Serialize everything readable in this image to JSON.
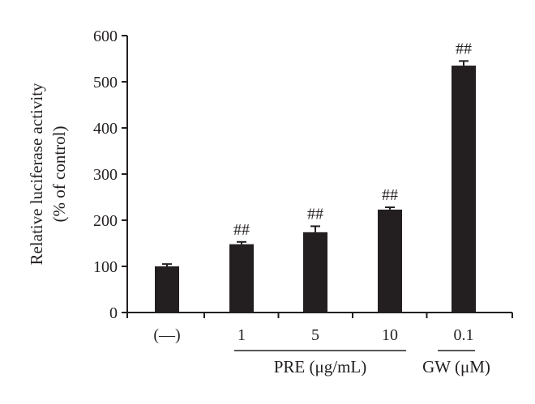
{
  "chart_data": {
    "type": "bar",
    "ylabel_line1": "Relative luciferase activity",
    "ylabel_line2": "(% of control)",
    "ylim": [
      0,
      600
    ],
    "yticks": [
      "0",
      "100",
      "200",
      "300",
      "400",
      "500",
      "600"
    ],
    "ytick_values": [
      0,
      100,
      200,
      300,
      400,
      500,
      600
    ],
    "categories": [
      "(—)",
      "1",
      "5",
      "10",
      "0.1"
    ],
    "values": [
      100,
      148,
      174,
      223,
      535
    ],
    "errors": [
      5,
      5,
      13,
      5,
      10
    ],
    "annotations": [
      "",
      "##",
      "##",
      "##",
      "##"
    ],
    "groups": [
      {
        "label": "PRE (μg/mL)",
        "categories": [
          "1",
          "5",
          "10"
        ]
      },
      {
        "label": "GW (μM)",
        "categories": [
          "0.1"
        ]
      }
    ],
    "bar_color": "#231f20",
    "axis_color": "#231f20",
    "grid": false,
    "legend": "none"
  }
}
